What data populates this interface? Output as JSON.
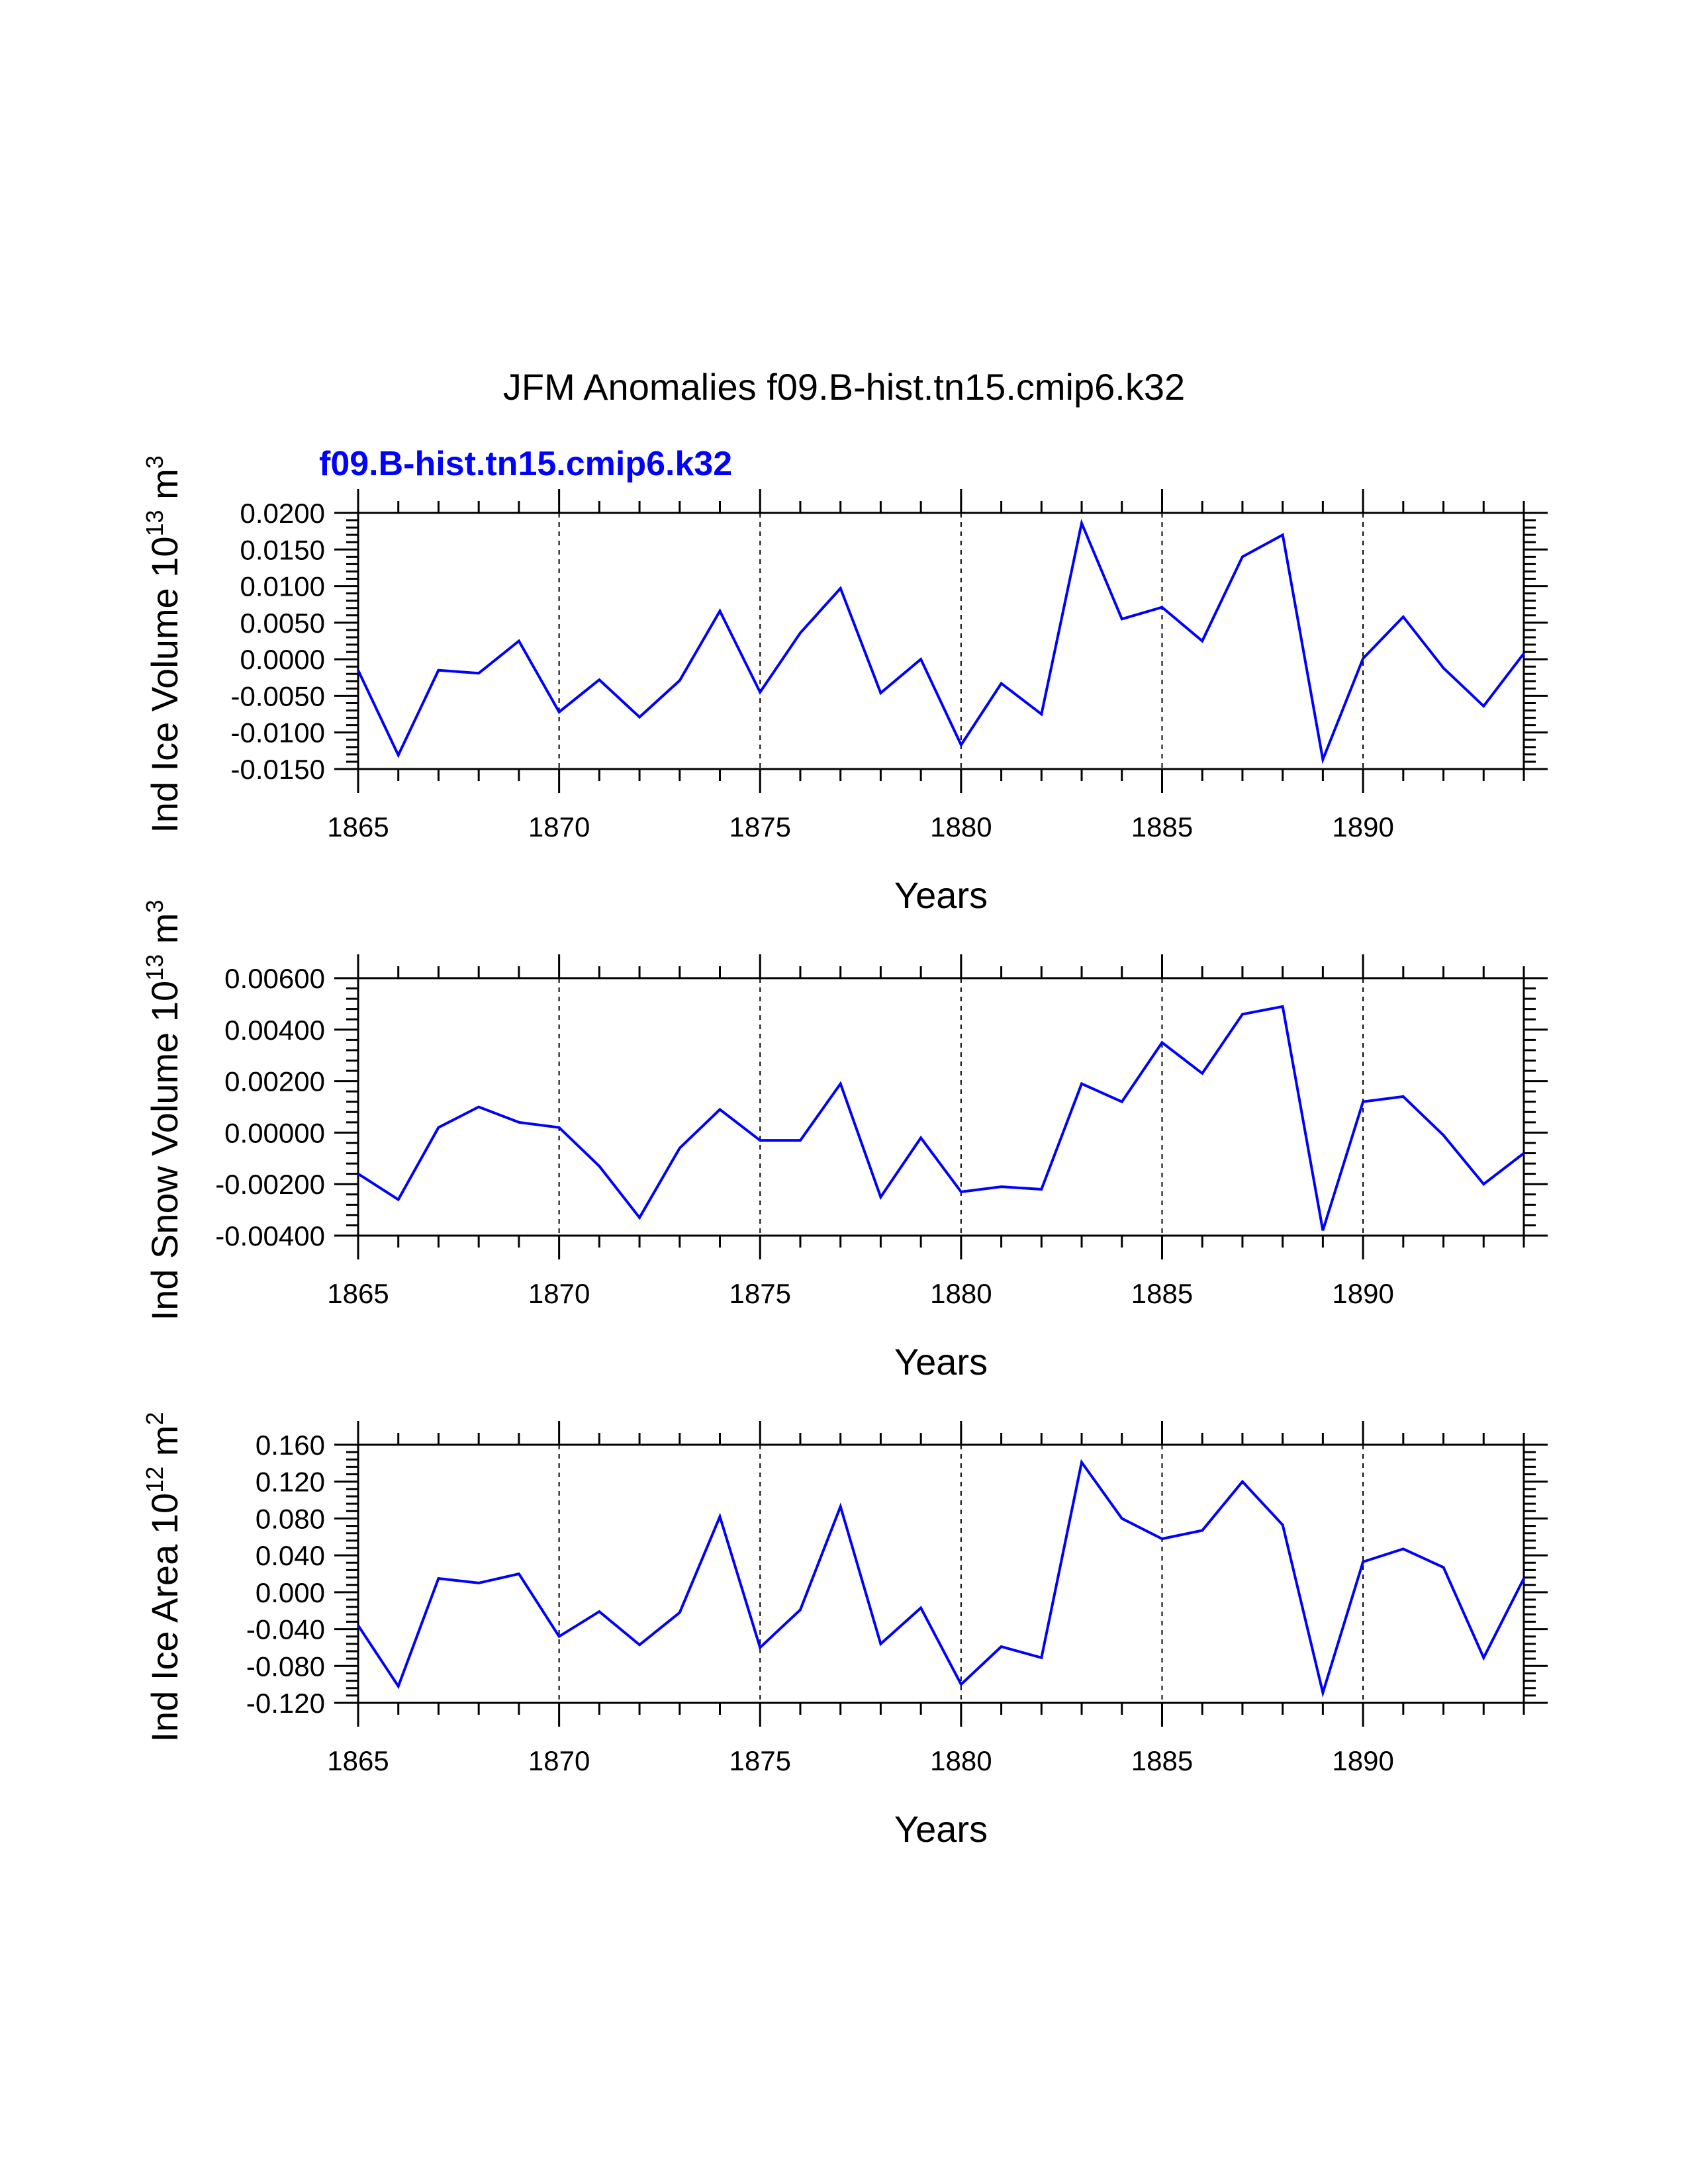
{
  "title": "JFM Anomalies f09.B-hist.tn15.cmip6.k32",
  "subtitle": "f09.B-hist.tn15.cmip6.k32",
  "colors": {
    "series": "#0000ff",
    "axis": "#000000",
    "subtitle": "#0000ff"
  },
  "chart_data": [
    {
      "type": "line",
      "ylabel_main": "Ind Ice Volume 10",
      "ylabel_exp": "13",
      "ylabel_unit": " m",
      "ylabel_unit_exp": "3",
      "xlabel": "Years",
      "xlim": [
        1865,
        1894
      ],
      "ylim": [
        -0.015,
        0.02
      ],
      "xticks": [
        "1865",
        "1870",
        "1875",
        "1880",
        "1885",
        "1890"
      ],
      "yticks": [
        "0.0200",
        "0.0150",
        "0.0100",
        "0.0050",
        "0.0000",
        "-0.0050",
        "-0.0100",
        "-0.0150"
      ],
      "ytick_values": [
        0.02,
        0.015,
        0.01,
        0.005,
        0.0,
        -0.005,
        -0.01,
        -0.015
      ],
      "x": [
        1865,
        1866,
        1867,
        1868,
        1869,
        1870,
        1871,
        1872,
        1873,
        1874,
        1875,
        1876,
        1877,
        1878,
        1879,
        1880,
        1881,
        1882,
        1883,
        1884,
        1885,
        1886,
        1887,
        1888,
        1889,
        1890,
        1891,
        1892,
        1893,
        1894
      ],
      "values": [
        -0.0015,
        -0.0131,
        -0.0015,
        -0.0019,
        0.0025,
        -0.0072,
        -0.0028,
        -0.0079,
        -0.0029,
        0.0066,
        -0.0045,
        0.0036,
        0.0097,
        -0.0046,
        0.0,
        -0.0117,
        -0.0033,
        -0.0075,
        0.0186,
        0.0055,
        0.0071,
        0.0025,
        0.014,
        0.017,
        -0.0137,
        0.0001,
        0.0058,
        -0.0012,
        -0.0064,
        0.0008
      ]
    },
    {
      "type": "line",
      "ylabel_main": "Ind Snow Volume 10",
      "ylabel_exp": "13",
      "ylabel_unit": " m",
      "ylabel_unit_exp": "3",
      "xlabel": "Years",
      "xlim": [
        1865,
        1894
      ],
      "ylim": [
        -0.004,
        0.006
      ],
      "xticks": [
        "1865",
        "1870",
        "1875",
        "1880",
        "1885",
        "1890"
      ],
      "yticks": [
        "0.00600",
        "0.00400",
        "0.00200",
        "0.00000",
        "-0.00200",
        "-0.00400"
      ],
      "ytick_values": [
        0.006,
        0.004,
        0.002,
        0.0,
        -0.002,
        -0.004
      ],
      "x": [
        1865,
        1866,
        1867,
        1868,
        1869,
        1870,
        1871,
        1872,
        1873,
        1874,
        1875,
        1876,
        1877,
        1878,
        1879,
        1880,
        1881,
        1882,
        1883,
        1884,
        1885,
        1886,
        1887,
        1888,
        1889,
        1890,
        1891,
        1892,
        1893,
        1894
      ],
      "values": [
        -0.0016,
        -0.0026,
        0.0002,
        0.001,
        0.0004,
        0.0002,
        -0.0013,
        -0.0033,
        -0.0006,
        0.0009,
        -0.0003,
        -0.0003,
        0.0019,
        -0.0025,
        -0.0002,
        -0.0023,
        -0.0021,
        -0.0022,
        0.0019,
        0.0012,
        0.0035,
        0.0023,
        0.0046,
        0.0049,
        -0.0038,
        0.0012,
        0.0014,
        -0.0001,
        -0.002,
        -0.0008
      ]
    },
    {
      "type": "line",
      "ylabel_main": "Ind Ice Area 10",
      "ylabel_exp": "12",
      "ylabel_unit": " m",
      "ylabel_unit_exp": "2",
      "xlabel": "Years",
      "xlim": [
        1865,
        1894
      ],
      "ylim": [
        -0.12,
        0.16
      ],
      "xticks": [
        "1865",
        "1870",
        "1875",
        "1880",
        "1885",
        "1890"
      ],
      "yticks": [
        "0.160",
        "0.120",
        "0.080",
        "0.040",
        "0.000",
        "-0.040",
        "-0.080",
        "-0.120"
      ],
      "ytick_values": [
        0.16,
        0.12,
        0.08,
        0.04,
        0.0,
        -0.04,
        -0.08,
        -0.12
      ],
      "x": [
        1865,
        1866,
        1867,
        1868,
        1869,
        1870,
        1871,
        1872,
        1873,
        1874,
        1875,
        1876,
        1877,
        1878,
        1879,
        1880,
        1881,
        1882,
        1883,
        1884,
        1885,
        1886,
        1887,
        1888,
        1889,
        1890,
        1891,
        1892,
        1893,
        1894
      ],
      "values": [
        -0.036,
        -0.102,
        0.015,
        0.01,
        0.02,
        -0.048,
        -0.021,
        -0.057,
        -0.022,
        0.082,
        -0.06,
        -0.019,
        0.093,
        -0.056,
        -0.017,
        -0.1,
        -0.059,
        -0.071,
        0.141,
        0.08,
        0.058,
        0.067,
        0.12,
        0.073,
        -0.109,
        0.033,
        0.047,
        0.027,
        -0.071,
        0.015
      ]
    }
  ]
}
